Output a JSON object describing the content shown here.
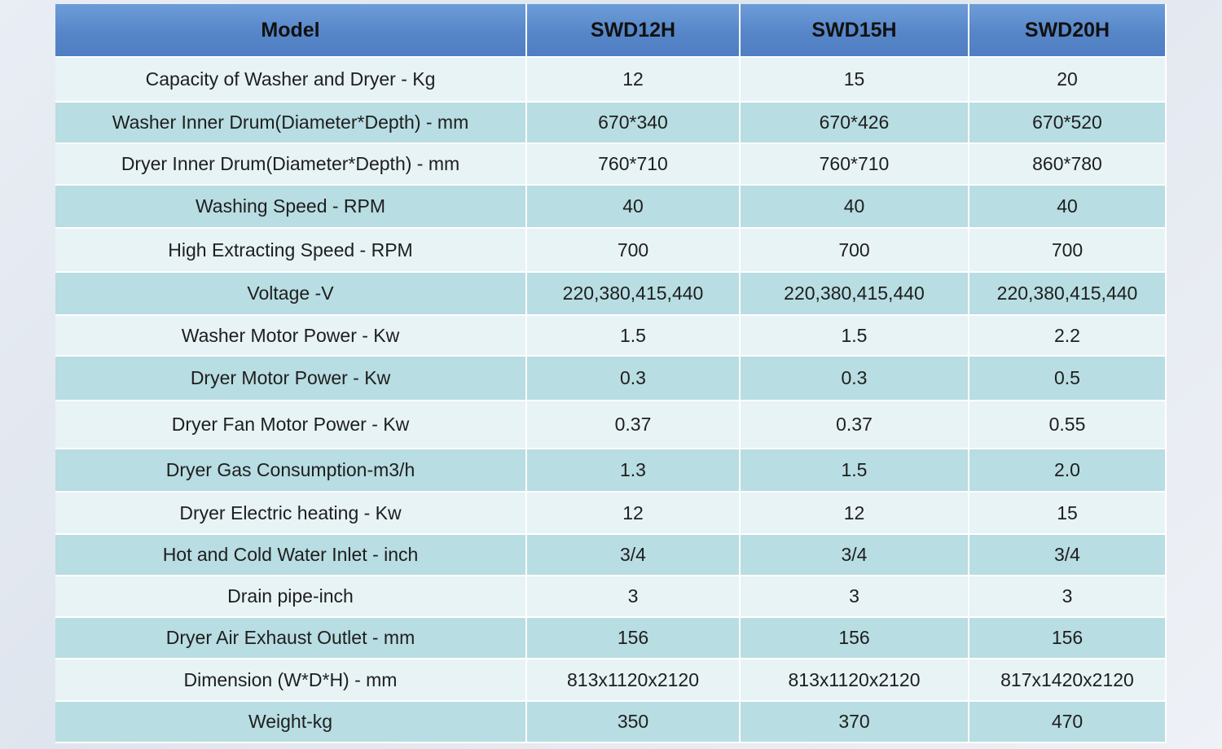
{
  "table": {
    "header": [
      "Model",
      "SWD12H",
      "SWD15H",
      "SWD20H"
    ],
    "rows": [
      [
        "Capacity of Washer and Dryer - Kg",
        "12",
        "15",
        "20"
      ],
      [
        "Washer Inner Drum(Diameter*Depth) - mm",
        "670*340",
        "670*426",
        "670*520"
      ],
      [
        "Dryer Inner Drum(Diameter*Depth) - mm",
        "760*710",
        "760*710",
        "860*780"
      ],
      [
        "Washing Speed - RPM",
        "40",
        "40",
        "40"
      ],
      [
        "High Extracting Speed - RPM",
        "700",
        "700",
        "700"
      ],
      [
        "Voltage -V",
        "220,380,415,440",
        "220,380,415,440",
        "220,380,415,440"
      ],
      [
        "Washer Motor Power - Kw",
        "1.5",
        "1.5",
        "2.2"
      ],
      [
        "Dryer Motor Power - Kw",
        "0.3",
        "0.3",
        "0.5"
      ],
      [
        "Dryer Fan Motor Power - Kw",
        "0.37",
        "0.37",
        "0.55"
      ],
      [
        "Dryer Gas Consumption-m3/h",
        "1.3",
        "1.5",
        "2.0"
      ],
      [
        "Dryer Electric heating - Kw",
        "12",
        "12",
        "15"
      ],
      [
        "Hot and Cold Water Inlet - inch",
        "3/4",
        "3/4",
        "3/4"
      ],
      [
        "Drain pipe-inch",
        "3",
        "3",
        "3"
      ],
      [
        "Dryer Air Exhaust Outlet - mm",
        "156",
        "156",
        "156"
      ],
      [
        "Dimension (W*D*H) - mm",
        "813x1120x2120",
        "813x1120x2120",
        "817x1420x2120"
      ],
      [
        "Weight-kg",
        "350",
        "370",
        "470"
      ]
    ]
  }
}
